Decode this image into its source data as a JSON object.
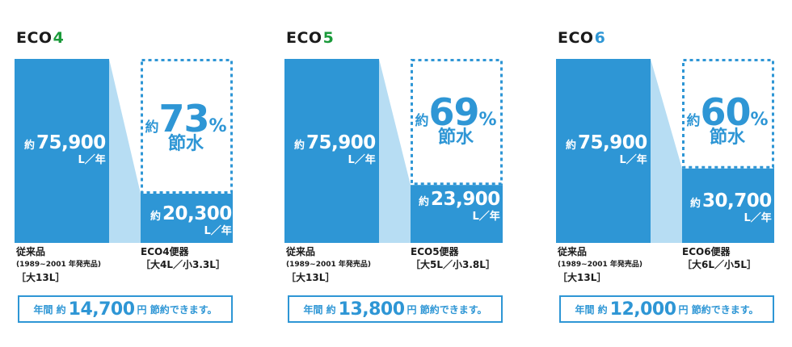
{
  "colors": {
    "bar": "#2e96d5",
    "shade": "#b7ddf3",
    "dots": "#2e96d5",
    "accent_green": "#1a9a3a",
    "accent_blue": "#2e96d5"
  },
  "chart_data": [
    {
      "type": "bar",
      "title_prefix": "ECO",
      "title_number": "4",
      "title_number_color": "#1a9a3a",
      "categories": [
        "従来品",
        "ECO4便器"
      ],
      "values": [
        75900,
        20300
      ],
      "value_prefix": "約",
      "value_labels": [
        "75,900",
        "20,300"
      ],
      "unit": "L／年",
      "savings_prefix": "約",
      "savings_percent": "73",
      "savings_sign": "%",
      "savings_word": "節水",
      "caption_left": {
        "name": "従来品",
        "years": "(1989~2001 年発売品)",
        "spec": "［大13L］"
      },
      "caption_right": {
        "name": "ECO4便器",
        "spec": "［大4L／小3.3L］"
      },
      "summary": {
        "pre": "年間 約",
        "amount": "14,700",
        "post": "円 節約できます。"
      }
    },
    {
      "type": "bar",
      "title_prefix": "ECO",
      "title_number": "5",
      "title_number_color": "#1a9a3a",
      "categories": [
        "従来品",
        "ECO5便器"
      ],
      "values": [
        75900,
        23900
      ],
      "value_prefix": "約",
      "value_labels": [
        "75,900",
        "23,900"
      ],
      "unit": "L／年",
      "savings_prefix": "約",
      "savings_percent": "69",
      "savings_sign": "%",
      "savings_word": "節水",
      "caption_left": {
        "name": "従来品",
        "years": "(1989~2001 年発売品)",
        "spec": "［大13L］"
      },
      "caption_right": {
        "name": "ECO5便器",
        "spec": "［大5L／小3.8L］"
      },
      "summary": {
        "pre": "年間 約",
        "amount": "13,800",
        "post": "円 節約できます。"
      }
    },
    {
      "type": "bar",
      "title_prefix": "ECO",
      "title_number": "6",
      "title_number_color": "#2e96d5",
      "categories": [
        "従来品",
        "ECO6便器"
      ],
      "values": [
        75900,
        30700
      ],
      "value_prefix": "約",
      "value_labels": [
        "75,900",
        "30,700"
      ],
      "unit": "L／年",
      "savings_prefix": "約",
      "savings_percent": "60",
      "savings_sign": "%",
      "savings_word": "節水",
      "caption_left": {
        "name": "従来品",
        "years": "(1989~2001 年発売品)",
        "spec": "［大13L］"
      },
      "caption_right": {
        "name": "ECO6便器",
        "spec": "［大6L／小5L］"
      },
      "summary": {
        "pre": "年間 約",
        "amount": "12,000",
        "post": "円 節約できます。"
      }
    }
  ]
}
